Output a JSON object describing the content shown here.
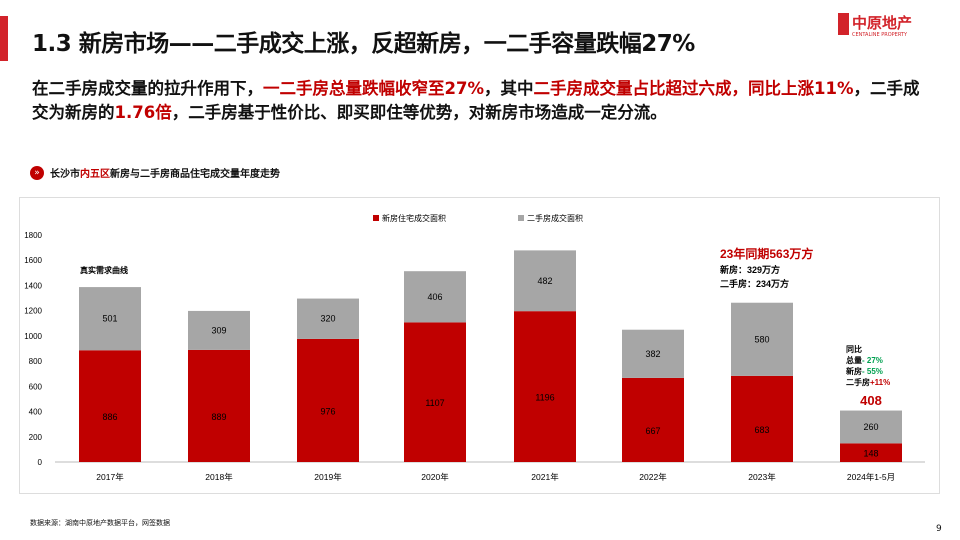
{
  "header": {
    "title": "1.3 新房市场——二手成交上涨，反超新房，一二手容量跌幅27%",
    "logo_text": "中原地产",
    "logo_sub": "CENTALINE PROPERTY"
  },
  "summary": {
    "p1": "在二手房成交量的拉升作用下，",
    "p2": "一二手房总量跌幅收窄至27%",
    "p3": "，其中",
    "p4": "二手房成交量占比超过六成，同比上涨11%",
    "p5": "，二手成交为新房的",
    "p6": "1.76倍",
    "p7": "，二手房基于性价比、即买即住等优势，对新房市场造成一定分流。"
  },
  "subtitle": {
    "a": "长沙市",
    "b": "内五区",
    "c": "新房与二手房商品住宅成交量年度走势"
  },
  "colors": {
    "new": "#c00000",
    "second": "#a6a6a6",
    "accent": "#d2232a",
    "green": "#00a050"
  },
  "chart_data": {
    "type": "bar",
    "stacked": true,
    "categories": [
      "2017年",
      "2018年",
      "2019年",
      "2020年",
      "2021年",
      "2022年",
      "2023年",
      "2024年1-5月"
    ],
    "series": [
      {
        "name": "新房住宅成交面积",
        "values": [
          886,
          889,
          976,
          1107,
          1196,
          667,
          683,
          148
        ]
      },
      {
        "name": "二手房成交面积",
        "values": [
          501,
          309,
          320,
          406,
          482,
          382,
          580,
          260
        ]
      }
    ],
    "yticks": [
      0,
      200,
      400,
      600,
      800,
      1000,
      1200,
      1400,
      1600,
      1800
    ],
    "ylim": [
      0,
      1800
    ],
    "legend": "top",
    "grid": false,
    "annotations": {
      "curve_label": "真实需求曲线",
      "same_period": "23年同期563万方",
      "same_new": "新房：329万方",
      "same_second": "二手房：234万方",
      "yoy": "同比",
      "yoy_total_l": "总量",
      "yoy_total": "- 27%",
      "yoy_new_l": "新房",
      "yoy_new": "- 55%",
      "yoy_second_l": "二手房",
      "yoy_second": "+11%",
      "total_2024": "408"
    }
  },
  "footer": {
    "source": "数据来源：湖南中原地产数据平台，网签数据",
    "page": "9"
  }
}
